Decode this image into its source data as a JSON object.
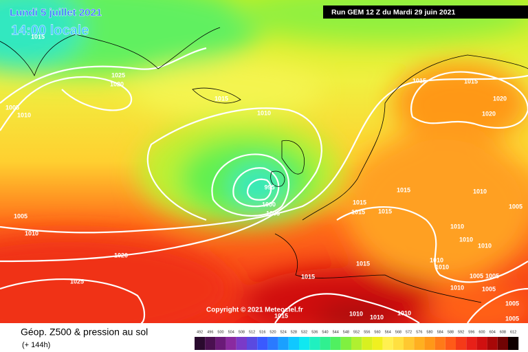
{
  "header": {
    "date": "Lundi 5 juillet 2021",
    "time": "14:00 locale",
    "run": "Run GEM 12 Z du Mardi 29 juin 2021"
  },
  "copyright": "Copyright © 2021 Meteociel.fr",
  "isobar_labels": [
    1015,
    1025,
    1020,
    1005,
    1010,
    1015,
    1010,
    995,
    1000,
    1005,
    1005,
    1010,
    1020,
    1025,
    1015,
    1015,
    1020,
    1020,
    1015,
    1015,
    1015,
    1015,
    1010,
    1005,
    1010,
    1010,
    1010,
    1010,
    1010,
    1015,
    1015,
    1005,
    1005,
    1010,
    1005,
    1015,
    1010,
    1010,
    1010,
    1005,
    1005
  ],
  "legend": {
    "title": "Géop. Z500 & pression au sol",
    "subtitle": "(+ 144h)",
    "scale": [
      492,
      496,
      500,
      504,
      508,
      512,
      516,
      520,
      524,
      528,
      532,
      536,
      540,
      544,
      548,
      552,
      556,
      560,
      564,
      568,
      572,
      576,
      580,
      584,
      588,
      592,
      596,
      600,
      604,
      608,
      612
    ],
    "colors": [
      "#2a0a2e",
      "#4a1050",
      "#6a1a78",
      "#8a2aa0",
      "#7a3ac8",
      "#5a4ae0",
      "#3a5aff",
      "#2a7aff",
      "#1aa0ff",
      "#10c8ff",
      "#10e8f0",
      "#20f0c0",
      "#30f090",
      "#50f060",
      "#80f040",
      "#b0f030",
      "#d8f020",
      "#f0f020",
      "#fff050",
      "#ffe040",
      "#ffc830",
      "#ffb020",
      "#ff9818",
      "#ff7a18",
      "#ff5a18",
      "#f53a18",
      "#e82018",
      "#d01010",
      "#a80808",
      "#700404",
      "#100000"
    ]
  }
}
